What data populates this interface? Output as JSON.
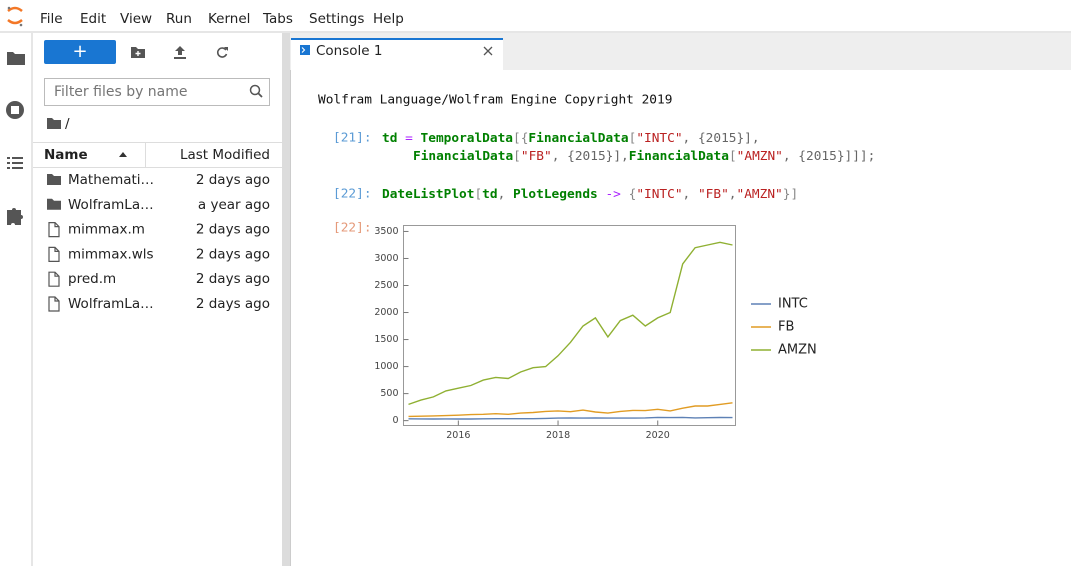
{
  "menu": [
    "File",
    "Edit",
    "View",
    "Run",
    "Kernel",
    "Tabs",
    "Settings",
    "Help"
  ],
  "filebrowser": {
    "filter_placeholder": "Filter files by name",
    "path": "/",
    "columns": [
      "Name",
      "Last Modified"
    ],
    "files": [
      {
        "name": "Mathemati…",
        "modified": "2 days ago",
        "kind": "folder"
      },
      {
        "name": "WolframLa…",
        "modified": "a year ago",
        "kind": "folder"
      },
      {
        "name": "mimmax.m",
        "modified": "2 days ago",
        "kind": "file"
      },
      {
        "name": "mimmax.wls",
        "modified": "2 days ago",
        "kind": "file"
      },
      {
        "name": "pred.m",
        "modified": "2 days ago",
        "kind": "file"
      },
      {
        "name": "WolframLa…",
        "modified": "2 days ago",
        "kind": "file"
      }
    ]
  },
  "console": {
    "tab": "Console 1",
    "banner": "Wolfram Language/Wolfram Engine Copyright 2019",
    "cells": [
      {
        "prompt": "[21]:",
        "lines": [
          [
            {
              "text": "td",
              "color": "#008000",
              "weight": "bold"
            },
            {
              "text": " = ",
              "color": "#aa22ff"
            },
            {
              "text": "TemporalData",
              "color": "#008000",
              "weight": "bold"
            },
            {
              "text": "[{",
              "color": "#888888"
            },
            {
              "text": "FinancialData",
              "color": "#008000",
              "weight": "bold"
            },
            {
              "text": "[",
              "color": "#888888"
            },
            {
              "text": "\"INTC\"",
              "color": "#ba2121"
            },
            {
              "text": ", {2015}],",
              "color": "#666666"
            }
          ],
          [
            {
              "text": "FinancialData",
              "color": "#008000",
              "weight": "bold"
            },
            {
              "text": "[",
              "color": "#888888"
            },
            {
              "text": "\"FB\"",
              "color": "#ba2121"
            },
            {
              "text": ", {2015}],",
              "color": "#666666"
            },
            {
              "text": "FinancialData",
              "color": "#008000",
              "weight": "bold"
            },
            {
              "text": "[",
              "color": "#888888"
            },
            {
              "text": "\"AMZN\"",
              "color": "#ba2121"
            },
            {
              "text": ", {2015}]]];",
              "color": "#666666"
            }
          ]
        ]
      },
      {
        "prompt": "[22]:",
        "lines": [
          [
            {
              "text": "DateListPlot",
              "color": "#008000",
              "weight": "bold"
            },
            {
              "text": "[",
              "color": "#888888"
            },
            {
              "text": "td",
              "color": "#008000",
              "weight": "bold"
            },
            {
              "text": ", ",
              "color": "#666666"
            },
            {
              "text": "PlotLegends",
              "color": "#008000",
              "weight": "bold"
            },
            {
              "text": " -> ",
              "color": "#aa22ff"
            },
            {
              "text": "{",
              "color": "#888888"
            },
            {
              "text": "\"INTC\"",
              "color": "#ba2121"
            },
            {
              "text": ", ",
              "color": "#666666"
            },
            {
              "text": "\"FB\"",
              "color": "#ba2121"
            },
            {
              "text": ",",
              "color": "#666666"
            },
            {
              "text": "\"AMZN\"",
              "color": "#ba2121"
            },
            {
              "text": "}]",
              "color": "#888888"
            }
          ]
        ]
      }
    ],
    "output_prompt": "[22]:"
  },
  "chart_data": {
    "type": "line",
    "x": [
      2015,
      2015.25,
      2015.5,
      2015.75,
      2016,
      2016.25,
      2016.5,
      2016.75,
      2017,
      2017.25,
      2017.5,
      2017.75,
      2018,
      2018.25,
      2018.5,
      2018.75,
      2019,
      2019.25,
      2019.5,
      2019.75,
      2020,
      2020.25,
      2020.5,
      2020.75,
      2021,
      2021.25,
      2021.5
    ],
    "series": [
      {
        "name": "INTC",
        "color": "#5e81b5",
        "values": [
          34,
          33,
          30,
          32,
          30,
          31,
          34,
          36,
          36,
          35,
          35,
          42,
          46,
          48,
          47,
          48,
          47,
          47,
          46,
          50,
          60,
          56,
          60,
          50,
          55,
          58,
          57
        ]
      },
      {
        "name": "FB",
        "color": "#e19c24",
        "values": [
          78,
          82,
          88,
          94,
          100,
          112,
          118,
          128,
          118,
          140,
          150,
          170,
          180,
          165,
          195,
          160,
          140,
          170,
          190,
          185,
          210,
          180,
          230,
          270,
          270,
          300,
          330
        ]
      },
      {
        "name": "AMZN",
        "color": "#8fb032",
        "values": [
          300,
          380,
          440,
          550,
          600,
          650,
          750,
          800,
          780,
          900,
          980,
          1000,
          1200,
          1450,
          1750,
          1900,
          1550,
          1850,
          1950,
          1750,
          1900,
          2000,
          2900,
          3200,
          3250,
          3300,
          3250
        ]
      }
    ],
    "xlim": [
      2014.9,
      2021.56
    ],
    "xticks": [
      2016,
      2018,
      2020
    ],
    "ylim": [
      -90,
      3610
    ],
    "yticks": [
      0,
      500,
      1000,
      1500,
      2000,
      2500,
      3000,
      3500
    ],
    "legend": "right"
  }
}
